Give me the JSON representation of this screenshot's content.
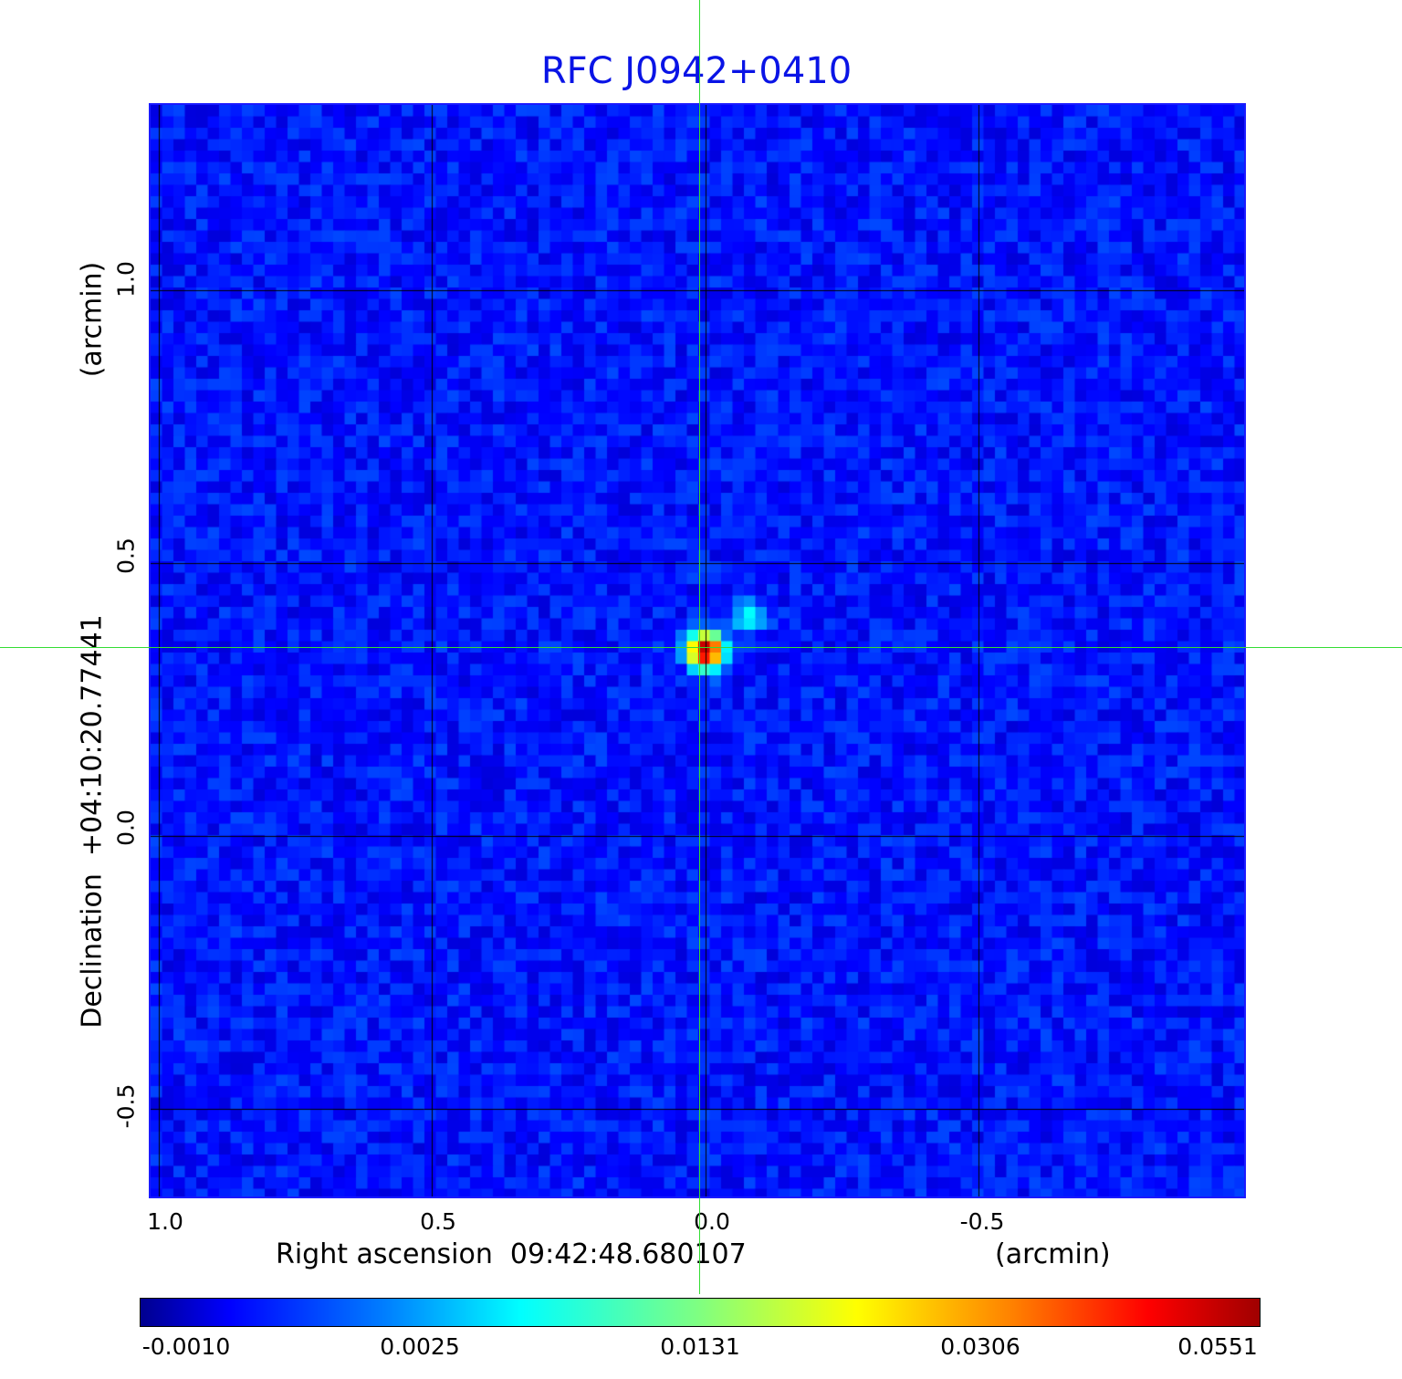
{
  "chart_data": {
    "type": "heatmap",
    "title": "RFC J0942+0410",
    "xlabel": "Right ascension  09:42:48.680107",
    "xunit": "(arcmin)",
    "ylabel": "Declination  +04:10:20.77441",
    "yunit": "(arcmin)",
    "xticks": [
      "1.0",
      "0.5",
      "0.0",
      "-0.5"
    ],
    "yticks": [
      "1.0",
      "0.5",
      "0.0",
      "-0.5"
    ],
    "xlim": [
      1.015,
      -0.985
    ],
    "ylim": [
      -0.66,
      1.34
    ],
    "grid": true,
    "colormap": "jet",
    "colorbar_ticks": [
      "-0.0010",
      "0.0025",
      "0.0131",
      "0.0306",
      "0.0551"
    ],
    "colorbar_range": [
      -0.001,
      0.0551
    ],
    "peak": {
      "ra_offset": 0.0,
      "dec_offset": 0.34,
      "value": 0.0551
    },
    "secondary_feature": {
      "ra_offset": -0.08,
      "dec_offset": 0.4,
      "value": 0.008
    },
    "crosshair": {
      "ra_offset": 0.0,
      "dec_offset": 0.34,
      "color": "#33dd33"
    },
    "border_color": "#1a1aff",
    "title_color": "#0a14e6"
  }
}
